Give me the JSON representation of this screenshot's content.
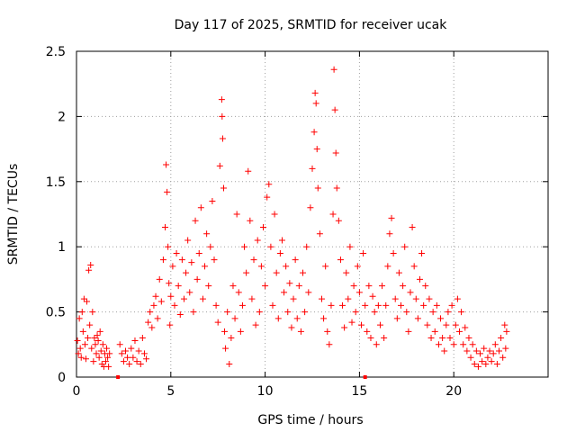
{
  "chart_data": {
    "type": "scatter",
    "title": "Day 117 of 2025, SRMTID for receiver ucak",
    "xlabel": "GPS time / hours",
    "ylabel": "SRMTID / TECUs",
    "xlim": [
      0,
      25
    ],
    "ylim": [
      0,
      2.5
    ],
    "x_ticks": [
      0,
      5,
      10,
      15,
      20
    ],
    "x_tick_labels": [
      "0",
      "5",
      "10",
      "15",
      "20"
    ],
    "y_ticks": [
      0,
      0.5,
      1,
      1.5,
      2,
      2.5
    ],
    "y_tick_labels": [
      "0",
      "0.5",
      "1",
      "1.5",
      "2",
      "2.5"
    ],
    "grid": true,
    "marker": "+",
    "series_color": "#ff0000",
    "gap_markers_x": [
      2.2,
      15.3
    ],
    "series": [
      {
        "name": "SRMTID",
        "points": [
          [
            0.05,
            0.28
          ],
          [
            0.1,
            0.18
          ],
          [
            0.15,
            0.45
          ],
          [
            0.2,
            0.22
          ],
          [
            0.25,
            0.15
          ],
          [
            0.3,
            0.5
          ],
          [
            0.35,
            0.35
          ],
          [
            0.4,
            0.6
          ],
          [
            0.45,
            0.25
          ],
          [
            0.5,
            0.14
          ],
          [
            0.55,
            0.58
          ],
          [
            0.6,
            0.3
          ],
          [
            0.65,
            0.82
          ],
          [
            0.7,
            0.4
          ],
          [
            0.75,
            0.86
          ],
          [
            0.8,
            0.22
          ],
          [
            0.85,
            0.5
          ],
          [
            0.9,
            0.12
          ],
          [
            0.95,
            0.3
          ],
          [
            1.0,
            0.25
          ],
          [
            1.05,
            0.18
          ],
          [
            1.1,
            0.32
          ],
          [
            1.15,
            0.28
          ],
          [
            1.2,
            0.15
          ],
          [
            1.25,
            0.35
          ],
          [
            1.3,
            0.2
          ],
          [
            1.35,
            0.1
          ],
          [
            1.4,
            0.25
          ],
          [
            1.45,
            0.08
          ],
          [
            1.5,
            0.18
          ],
          [
            1.55,
            0.12
          ],
          [
            1.6,
            0.22
          ],
          [
            1.65,
            0.15
          ],
          [
            1.7,
            0.08
          ],
          [
            1.75,
            0.18
          ],
          [
            2.3,
            0.25
          ],
          [
            2.4,
            0.18
          ],
          [
            2.5,
            0.12
          ],
          [
            2.6,
            0.2
          ],
          [
            2.7,
            0.15
          ],
          [
            2.8,
            0.1
          ],
          [
            2.9,
            0.22
          ],
          [
            3.0,
            0.15
          ],
          [
            3.1,
            0.28
          ],
          [
            3.2,
            0.12
          ],
          [
            3.3,
            0.2
          ],
          [
            3.4,
            0.1
          ],
          [
            3.5,
            0.3
          ],
          [
            3.6,
            0.18
          ],
          [
            3.7,
            0.14
          ],
          [
            3.8,
            0.42
          ],
          [
            3.9,
            0.5
          ],
          [
            4.0,
            0.38
          ],
          [
            4.1,
            0.55
          ],
          [
            4.2,
            0.62
          ],
          [
            4.3,
            0.45
          ],
          [
            4.4,
            0.75
          ],
          [
            4.5,
            0.58
          ],
          [
            4.6,
            0.9
          ],
          [
            4.7,
            1.15
          ],
          [
            4.75,
            1.63
          ],
          [
            4.8,
            1.42
          ],
          [
            4.85,
            1.0
          ],
          [
            4.9,
            0.72
          ],
          [
            4.95,
            0.4
          ],
          [
            5.0,
            0.62
          ],
          [
            5.1,
            0.85
          ],
          [
            5.2,
            0.55
          ],
          [
            5.3,
            0.95
          ],
          [
            5.4,
            0.7
          ],
          [
            5.5,
            0.48
          ],
          [
            5.6,
            0.9
          ],
          [
            5.7,
            0.6
          ],
          [
            5.8,
            0.8
          ],
          [
            5.9,
            1.05
          ],
          [
            6.0,
            0.65
          ],
          [
            6.1,
            0.88
          ],
          [
            6.2,
            0.5
          ],
          [
            6.3,
            1.2
          ],
          [
            6.4,
            0.75
          ],
          [
            6.5,
            0.95
          ],
          [
            6.6,
            1.3
          ],
          [
            6.7,
            0.6
          ],
          [
            6.8,
            0.85
          ],
          [
            6.9,
            1.1
          ],
          [
            7.0,
            0.7
          ],
          [
            7.1,
            1.0
          ],
          [
            7.2,
            1.35
          ],
          [
            7.3,
            0.9
          ],
          [
            7.4,
            0.55
          ],
          [
            7.5,
            0.42
          ],
          [
            7.6,
            1.62
          ],
          [
            7.7,
            2.13
          ],
          [
            7.72,
            2.0
          ],
          [
            7.75,
            1.83
          ],
          [
            7.8,
            1.45
          ],
          [
            7.85,
            0.35
          ],
          [
            7.9,
            0.22
          ],
          [
            8.0,
            0.5
          ],
          [
            8.1,
            0.1
          ],
          [
            8.2,
            0.3
          ],
          [
            8.3,
            0.7
          ],
          [
            8.4,
            0.45
          ],
          [
            8.5,
            1.25
          ],
          [
            8.6,
            0.65
          ],
          [
            8.7,
            0.35
          ],
          [
            8.8,
            0.55
          ],
          [
            8.9,
            1.0
          ],
          [
            9.0,
            0.8
          ],
          [
            9.1,
            1.58
          ],
          [
            9.2,
            1.2
          ],
          [
            9.3,
            0.6
          ],
          [
            9.4,
            0.9
          ],
          [
            9.5,
            0.4
          ],
          [
            9.6,
            1.05
          ],
          [
            9.7,
            0.5
          ],
          [
            9.8,
            0.85
          ],
          [
            9.9,
            1.15
          ],
          [
            10.0,
            0.7
          ],
          [
            10.1,
            1.38
          ],
          [
            10.2,
            1.48
          ],
          [
            10.3,
            1.0
          ],
          [
            10.4,
            0.55
          ],
          [
            10.5,
            1.25
          ],
          [
            10.6,
            0.8
          ],
          [
            10.7,
            0.45
          ],
          [
            10.8,
            0.95
          ],
          [
            10.9,
            1.05
          ],
          [
            11.0,
            0.65
          ],
          [
            11.1,
            0.85
          ],
          [
            11.2,
            0.5
          ],
          [
            11.3,
            0.72
          ],
          [
            11.4,
            0.38
          ],
          [
            11.5,
            0.6
          ],
          [
            11.6,
            0.9
          ],
          [
            11.7,
            0.45
          ],
          [
            11.8,
            0.7
          ],
          [
            11.9,
            0.35
          ],
          [
            12.0,
            0.8
          ],
          [
            12.1,
            0.5
          ],
          [
            12.2,
            1.0
          ],
          [
            12.3,
            0.65
          ],
          [
            12.4,
            1.3
          ],
          [
            12.5,
            1.6
          ],
          [
            12.6,
            1.88
          ],
          [
            12.65,
            2.18
          ],
          [
            12.7,
            2.1
          ],
          [
            12.75,
            1.75
          ],
          [
            12.8,
            1.45
          ],
          [
            12.9,
            1.1
          ],
          [
            13.0,
            0.6
          ],
          [
            13.1,
            0.45
          ],
          [
            13.2,
            0.85
          ],
          [
            13.3,
            0.35
          ],
          [
            13.4,
            0.25
          ],
          [
            13.5,
            0.55
          ],
          [
            13.6,
            1.25
          ],
          [
            13.65,
            2.36
          ],
          [
            13.7,
            2.05
          ],
          [
            13.75,
            1.72
          ],
          [
            13.8,
            1.45
          ],
          [
            13.9,
            1.2
          ],
          [
            14.0,
            0.9
          ],
          [
            14.1,
            0.55
          ],
          [
            14.2,
            0.38
          ],
          [
            14.3,
            0.8
          ],
          [
            14.4,
            0.6
          ],
          [
            14.5,
            1.0
          ],
          [
            14.6,
            0.42
          ],
          [
            14.7,
            0.7
          ],
          [
            14.8,
            0.5
          ],
          [
            14.9,
            0.85
          ],
          [
            15.0,
            0.65
          ],
          [
            15.1,
            0.4
          ],
          [
            15.2,
            0.95
          ],
          [
            15.3,
            0.55
          ],
          [
            15.4,
            0.35
          ],
          [
            15.5,
            0.7
          ],
          [
            15.6,
            0.3
          ],
          [
            15.7,
            0.62
          ],
          [
            15.8,
            0.5
          ],
          [
            15.9,
            0.25
          ],
          [
            16.0,
            0.55
          ],
          [
            16.1,
            0.4
          ],
          [
            16.2,
            0.7
          ],
          [
            16.3,
            0.3
          ],
          [
            16.4,
            0.55
          ],
          [
            16.5,
            0.85
          ],
          [
            16.6,
            1.1
          ],
          [
            16.7,
            1.22
          ],
          [
            16.8,
            0.95
          ],
          [
            16.9,
            0.6
          ],
          [
            17.0,
            0.45
          ],
          [
            17.1,
            0.8
          ],
          [
            17.2,
            0.55
          ],
          [
            17.3,
            0.7
          ],
          [
            17.4,
            1.0
          ],
          [
            17.5,
            0.5
          ],
          [
            17.6,
            0.35
          ],
          [
            17.7,
            0.65
          ],
          [
            17.8,
            1.15
          ],
          [
            17.9,
            0.85
          ],
          [
            18.0,
            0.6
          ],
          [
            18.1,
            0.45
          ],
          [
            18.2,
            0.75
          ],
          [
            18.3,
            0.95
          ],
          [
            18.4,
            0.55
          ],
          [
            18.5,
            0.7
          ],
          [
            18.6,
            0.4
          ],
          [
            18.7,
            0.6
          ],
          [
            18.8,
            0.3
          ],
          [
            18.9,
            0.5
          ],
          [
            19.0,
            0.35
          ],
          [
            19.1,
            0.55
          ],
          [
            19.2,
            0.25
          ],
          [
            19.3,
            0.45
          ],
          [
            19.4,
            0.3
          ],
          [
            19.5,
            0.2
          ],
          [
            19.6,
            0.4
          ],
          [
            19.7,
            0.5
          ],
          [
            19.8,
            0.3
          ],
          [
            19.9,
            0.55
          ],
          [
            20.0,
            0.25
          ],
          [
            20.1,
            0.4
          ],
          [
            20.2,
            0.6
          ],
          [
            20.3,
            0.35
          ],
          [
            20.4,
            0.5
          ],
          [
            20.5,
            0.25
          ],
          [
            20.6,
            0.38
          ],
          [
            20.7,
            0.2
          ],
          [
            20.8,
            0.3
          ],
          [
            20.9,
            0.15
          ],
          [
            21.0,
            0.25
          ],
          [
            21.1,
            0.1
          ],
          [
            21.2,
            0.2
          ],
          [
            21.3,
            0.08
          ],
          [
            21.4,
            0.18
          ],
          [
            21.5,
            0.12
          ],
          [
            21.6,
            0.22
          ],
          [
            21.7,
            0.1
          ],
          [
            21.8,
            0.15
          ],
          [
            21.9,
            0.2
          ],
          [
            22.0,
            0.12
          ],
          [
            22.1,
            0.18
          ],
          [
            22.2,
            0.25
          ],
          [
            22.3,
            0.1
          ],
          [
            22.4,
            0.2
          ],
          [
            22.5,
            0.3
          ],
          [
            22.6,
            0.15
          ],
          [
            22.7,
            0.4
          ],
          [
            22.75,
            0.22
          ],
          [
            22.8,
            0.35
          ]
        ]
      }
    ]
  }
}
